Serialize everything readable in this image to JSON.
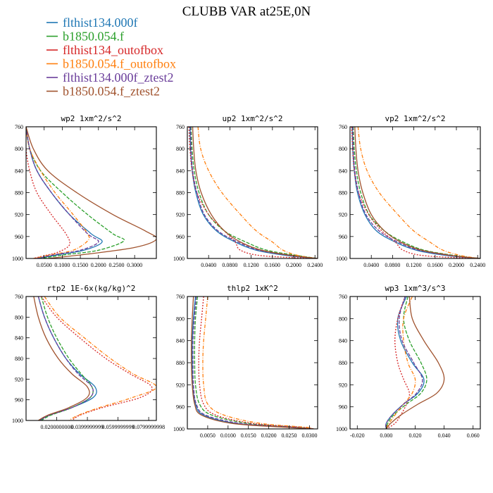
{
  "title": "CLUBB VAR at25E,0N",
  "series": [
    {
      "name": "flthist134.000f",
      "color": "#1f77b4",
      "dash": "none"
    },
    {
      "name": "b1850.054.f",
      "color": "#2ca02c",
      "dash": "5,2"
    },
    {
      "name": "flthist134_outofbox",
      "color": "#d62728",
      "dash": "2,2"
    },
    {
      "name": "b1850.054.f_outofbox",
      "color": "#ff7f0e",
      "dash": "5,2,1,2"
    },
    {
      "name": "flthist134.000f_ztest2",
      "color": "#6a3d9a",
      "dash": "5,2"
    },
    {
      "name": "b1850.054.f_ztest2",
      "color": "#a0522d",
      "dash": "none"
    }
  ],
  "chart_data": [
    {
      "type": "line",
      "title": "wp2  1xm^2/s^2",
      "xlim": [
        0.0,
        0.36
      ],
      "ylim": [
        760,
        1000
      ],
      "y_reversed": true,
      "xticks": [
        0.05,
        0.1,
        0.15,
        0.2,
        0.25,
        0.3
      ],
      "xtick_labels": [
        "0.0500",
        "0.1000",
        "0.1500",
        "0.2000",
        "0.2500",
        "0.3000"
      ],
      "yticks": [
        760,
        800,
        840,
        880,
        920,
        960,
        1000
      ],
      "series_curves": [
        {
          "x": [
            0.0,
            0.01,
            0.03,
            0.07,
            0.12,
            0.18,
            0.21,
            0.16,
            0.09,
            0.03
          ],
          "y": [
            760,
            800,
            840,
            880,
            920,
            955,
            970,
            985,
            993,
            1000
          ]
        },
        {
          "x": [
            0.0,
            0.01,
            0.04,
            0.1,
            0.17,
            0.24,
            0.27,
            0.2,
            0.11,
            0.04
          ],
          "y": [
            760,
            800,
            840,
            880,
            920,
            955,
            968,
            985,
            993,
            1000
          ]
        },
        {
          "x": [
            0.0,
            0.0,
            0.01,
            0.03,
            0.07,
            0.11,
            0.12,
            0.09,
            0.05,
            0.02
          ],
          "y": [
            760,
            800,
            840,
            880,
            920,
            955,
            975,
            988,
            995,
            1000
          ]
        },
        {
          "x": [
            0.0,
            0.01,
            0.04,
            0.08,
            0.13,
            0.17,
            0.17,
            0.13,
            0.07,
            0.02
          ],
          "y": [
            760,
            800,
            840,
            880,
            920,
            955,
            968,
            985,
            993,
            1000
          ]
        },
        {
          "x": [
            0.0,
            0.01,
            0.03,
            0.07,
            0.12,
            0.17,
            0.2,
            0.15,
            0.08,
            0.03
          ],
          "y": [
            760,
            800,
            840,
            880,
            920,
            955,
            970,
            985,
            993,
            1000
          ]
        },
        {
          "x": [
            0.0,
            0.02,
            0.06,
            0.14,
            0.24,
            0.33,
            0.36,
            0.3,
            0.17,
            0.06
          ],
          "y": [
            760,
            800,
            840,
            880,
            920,
            950,
            965,
            980,
            992,
            1000
          ]
        }
      ]
    },
    {
      "type": "line",
      "title": "up2  1xm^2/s^2",
      "xlim": [
        0.0,
        0.245
      ],
      "ylim": [
        760,
        1000
      ],
      "y_reversed": true,
      "xticks": [
        0.04,
        0.08,
        0.12,
        0.16,
        0.2,
        0.24
      ],
      "xtick_labels": [
        "0.0400",
        "0.0800",
        "0.1200",
        "0.1600",
        "0.2000",
        "0.2400"
      ],
      "yticks": [
        760,
        800,
        840,
        880,
        920,
        960,
        1000
      ],
      "series_curves": [
        {
          "x": [
            0.005,
            0.006,
            0.009,
            0.016,
            0.03,
            0.055,
            0.09,
            0.13,
            0.19,
            0.245
          ],
          "y": [
            760,
            800,
            840,
            880,
            920,
            950,
            970,
            985,
            995,
            1000
          ]
        },
        {
          "x": [
            0.007,
            0.009,
            0.013,
            0.022,
            0.04,
            0.07,
            0.11,
            0.15,
            0.21,
            0.245
          ],
          "y": [
            760,
            800,
            840,
            880,
            920,
            950,
            970,
            985,
            995,
            1000
          ]
        },
        {
          "x": [
            0.003,
            0.005,
            0.009,
            0.018,
            0.04,
            0.07,
            0.09,
            0.1,
            0.14,
            0.24
          ],
          "y": [
            760,
            800,
            840,
            880,
            920,
            950,
            970,
            985,
            995,
            1000
          ]
        },
        {
          "x": [
            0.02,
            0.025,
            0.04,
            0.065,
            0.1,
            0.13,
            0.16,
            0.18,
            0.21,
            0.245
          ],
          "y": [
            760,
            800,
            840,
            880,
            920,
            950,
            970,
            985,
            995,
            1000
          ]
        },
        {
          "x": [
            0.006,
            0.007,
            0.01,
            0.018,
            0.032,
            0.058,
            0.095,
            0.135,
            0.195,
            0.245
          ],
          "y": [
            760,
            800,
            840,
            880,
            920,
            950,
            970,
            985,
            995,
            1000
          ]
        },
        {
          "x": [
            0.01,
            0.012,
            0.016,
            0.026,
            0.045,
            0.07,
            0.1,
            0.14,
            0.2,
            0.245
          ],
          "y": [
            760,
            800,
            840,
            880,
            920,
            950,
            970,
            985,
            995,
            1000
          ]
        }
      ]
    },
    {
      "type": "line",
      "title": "vp2  1xm^2/s^2",
      "xlim": [
        0.0,
        0.245
      ],
      "ylim": [
        760,
        1000
      ],
      "y_reversed": true,
      "xticks": [
        0.04,
        0.08,
        0.12,
        0.16,
        0.2,
        0.24
      ],
      "xtick_labels": [
        "0.0400",
        "0.0800",
        "0.1200",
        "0.1600",
        "0.2000",
        "0.2400"
      ],
      "yticks": [
        760,
        800,
        840,
        880,
        920,
        960,
        1000
      ],
      "series_curves": [
        {
          "x": [
            0.004,
            0.005,
            0.008,
            0.014,
            0.028,
            0.05,
            0.085,
            0.125,
            0.185,
            0.245
          ],
          "y": [
            760,
            800,
            840,
            880,
            920,
            950,
            970,
            985,
            995,
            1000
          ]
        },
        {
          "x": [
            0.006,
            0.008,
            0.012,
            0.02,
            0.036,
            0.065,
            0.1,
            0.14,
            0.2,
            0.245
          ],
          "y": [
            760,
            800,
            840,
            880,
            920,
            950,
            970,
            985,
            995,
            1000
          ]
        },
        {
          "x": [
            0.003,
            0.005,
            0.008,
            0.016,
            0.035,
            0.06,
            0.085,
            0.1,
            0.14,
            0.24
          ],
          "y": [
            760,
            800,
            840,
            880,
            920,
            950,
            970,
            985,
            995,
            1000
          ]
        },
        {
          "x": [
            0.015,
            0.02,
            0.032,
            0.055,
            0.09,
            0.12,
            0.15,
            0.175,
            0.21,
            0.245
          ],
          "y": [
            760,
            800,
            840,
            880,
            920,
            950,
            970,
            985,
            995,
            1000
          ]
        },
        {
          "x": [
            0.005,
            0.006,
            0.009,
            0.016,
            0.03,
            0.055,
            0.09,
            0.13,
            0.19,
            0.245
          ],
          "y": [
            760,
            800,
            840,
            880,
            920,
            950,
            970,
            985,
            995,
            1000
          ]
        },
        {
          "x": [
            0.009,
            0.011,
            0.015,
            0.024,
            0.04,
            0.065,
            0.095,
            0.135,
            0.195,
            0.245
          ],
          "y": [
            760,
            800,
            840,
            880,
            920,
            950,
            970,
            985,
            995,
            1000
          ]
        }
      ]
    },
    {
      "type": "line",
      "title": "rtp2  1E-6x(kg/kg)^2",
      "xlim": [
        0.0,
        0.085
      ],
      "ylim": [
        760,
        1000
      ],
      "y_reversed": true,
      "xticks": [
        0.02,
        0.04,
        0.06,
        0.08
      ],
      "xtick_labels": [
        "0.0200000000",
        "0.0399999999",
        "0.0599999999",
        "0.0799999998"
      ],
      "yticks": [
        760,
        800,
        840,
        880,
        920,
        960,
        1000
      ],
      "series_curves": [
        {
          "x": [
            0.008,
            0.012,
            0.018,
            0.026,
            0.035,
            0.045,
            0.044,
            0.03,
            0.015,
            0.009
          ],
          "y": [
            760,
            800,
            840,
            880,
            910,
            935,
            955,
            975,
            990,
            1000
          ]
        },
        {
          "x": [
            0.01,
            0.014,
            0.02,
            0.028,
            0.036,
            0.043,
            0.042,
            0.03,
            0.016,
            0.01
          ],
          "y": [
            760,
            800,
            840,
            880,
            910,
            935,
            955,
            975,
            990,
            1000
          ]
        },
        {
          "x": [
            0.01,
            0.02,
            0.035,
            0.052,
            0.068,
            0.082,
            0.075,
            0.05,
            0.035,
            0.03
          ],
          "y": [
            760,
            800,
            840,
            880,
            910,
            935,
            955,
            975,
            990,
            1000
          ]
        },
        {
          "x": [
            0.012,
            0.022,
            0.038,
            0.055,
            0.07,
            0.085,
            0.07,
            0.048,
            0.034,
            0.028
          ],
          "y": [
            760,
            800,
            840,
            880,
            910,
            935,
            955,
            975,
            990,
            1000
          ]
        },
        {
          "x": [
            0.008,
            0.012,
            0.018,
            0.026,
            0.034,
            0.043,
            0.042,
            0.03,
            0.015,
            0.009
          ],
          "y": [
            760,
            800,
            840,
            880,
            910,
            935,
            955,
            975,
            990,
            1000
          ]
        },
        {
          "x": [
            0.005,
            0.008,
            0.013,
            0.021,
            0.03,
            0.04,
            0.04,
            0.028,
            0.014,
            0.008
          ],
          "y": [
            760,
            800,
            840,
            880,
            910,
            935,
            955,
            975,
            990,
            1000
          ]
        }
      ]
    },
    {
      "type": "line",
      "title": "thlp2  1xK^2",
      "xlim": [
        0.0,
        0.032
      ],
      "ylim": [
        760,
        1000
      ],
      "y_reversed": true,
      "xticks": [
        0.005,
        0.01,
        0.015,
        0.02,
        0.025,
        0.03
      ],
      "xtick_labels": [
        "0.0050",
        "0.0100",
        "0.0150",
        "0.0200",
        "0.0250",
        "0.0300"
      ],
      "yticks": [
        760,
        800,
        840,
        880,
        920,
        960,
        1000
      ],
      "series_curves": [
        {
          "x": [
            0.002,
            0.0015,
            0.0012,
            0.0012,
            0.0013,
            0.002,
            0.004,
            0.012,
            0.025,
            0.031
          ],
          "y": [
            760,
            800,
            840,
            880,
            920,
            955,
            975,
            990,
            997,
            1000
          ]
        },
        {
          "x": [
            0.0025,
            0.002,
            0.0018,
            0.0018,
            0.002,
            0.003,
            0.006,
            0.015,
            0.027,
            0.031
          ],
          "y": [
            760,
            800,
            840,
            880,
            920,
            955,
            975,
            990,
            997,
            1000
          ]
        },
        {
          "x": [
            0.004,
            0.0035,
            0.003,
            0.0028,
            0.003,
            0.004,
            0.007,
            0.016,
            0.028,
            0.031
          ],
          "y": [
            760,
            800,
            840,
            880,
            920,
            955,
            975,
            990,
            997,
            1000
          ]
        },
        {
          "x": [
            0.005,
            0.0045,
            0.004,
            0.0038,
            0.004,
            0.005,
            0.009,
            0.018,
            0.029,
            0.031
          ],
          "y": [
            760,
            800,
            840,
            880,
            920,
            955,
            975,
            990,
            997,
            1000
          ]
        },
        {
          "x": [
            0.0022,
            0.0017,
            0.0014,
            0.0014,
            0.0015,
            0.0022,
            0.0045,
            0.013,
            0.026,
            0.031
          ],
          "y": [
            760,
            800,
            840,
            880,
            920,
            955,
            975,
            990,
            997,
            1000
          ]
        },
        {
          "x": [
            0.0015,
            0.0012,
            0.001,
            0.001,
            0.0012,
            0.0018,
            0.0035,
            0.011,
            0.024,
            0.031
          ],
          "y": [
            760,
            800,
            840,
            880,
            920,
            955,
            975,
            990,
            997,
            1000
          ]
        }
      ]
    },
    {
      "type": "line",
      "title": "wp3  1xm^3/s^3",
      "xlim": [
        -0.025,
        0.065
      ],
      "ylim": [
        760,
        1000
      ],
      "y_reversed": true,
      "xticks": [
        -0.02,
        0.0,
        0.02,
        0.04,
        0.06
      ],
      "xtick_labels": [
        "-0.020",
        "0.000",
        "0.020",
        "0.040",
        "0.060"
      ],
      "yticks": [
        760,
        800,
        840,
        880,
        920,
        960,
        1000
      ],
      "series_curves": [
        {
          "x": [
            0.014,
            0.008,
            0.01,
            0.018,
            0.026,
            0.022,
            0.012,
            0.004,
            0.0,
            0.0
          ],
          "y": [
            760,
            800,
            840,
            880,
            910,
            935,
            955,
            975,
            990,
            1000
          ]
        },
        {
          "x": [
            0.015,
            0.012,
            0.016,
            0.024,
            0.028,
            0.024,
            0.014,
            0.005,
            0.001,
            0.0
          ],
          "y": [
            760,
            800,
            840,
            880,
            910,
            935,
            955,
            975,
            990,
            1000
          ]
        },
        {
          "x": [
            0.013,
            0.008,
            0.006,
            0.008,
            0.012,
            0.016,
            0.014,
            0.01,
            0.006,
            0.0
          ],
          "y": [
            760,
            800,
            840,
            880,
            910,
            935,
            955,
            975,
            990,
            1000
          ]
        },
        {
          "x": [
            0.018,
            0.012,
            0.012,
            0.015,
            0.02,
            0.018,
            0.012,
            0.006,
            0.002,
            0.0
          ],
          "y": [
            760,
            800,
            840,
            880,
            910,
            935,
            955,
            975,
            990,
            1000
          ]
        },
        {
          "x": [
            0.013,
            0.009,
            0.011,
            0.019,
            0.025,
            0.021,
            0.012,
            0.004,
            0.0,
            0.0
          ],
          "y": [
            760,
            800,
            840,
            880,
            910,
            935,
            955,
            975,
            990,
            1000
          ]
        },
        {
          "x": [
            0.016,
            0.018,
            0.026,
            0.036,
            0.04,
            0.035,
            0.022,
            0.01,
            0.003,
            0.0
          ],
          "y": [
            760,
            800,
            840,
            880,
            910,
            935,
            955,
            975,
            990,
            1000
          ]
        }
      ]
    }
  ]
}
